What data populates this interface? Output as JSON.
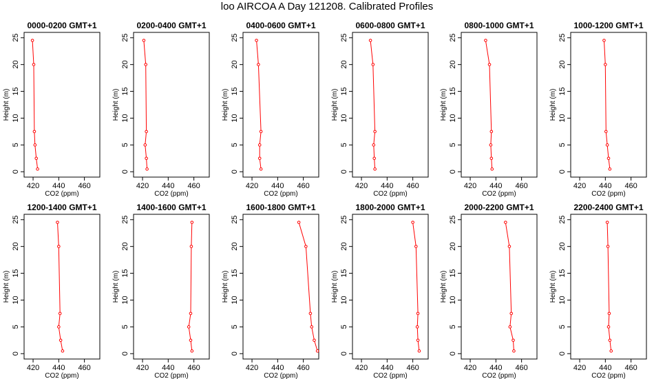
{
  "title": "loo AIRCOA A  Day 121208. Calibrated Profiles",
  "chart_data": [
    {
      "type": "line",
      "title": "0000-0200 GMT+1",
      "xlabel": "CO2 (ppm)",
      "ylabel": "Height (m)",
      "xlim": [
        413,
        472
      ],
      "ylim": [
        -1,
        26
      ],
      "xticks": [
        420,
        440,
        460
      ],
      "yticks": [
        0,
        5,
        10,
        15,
        20,
        25
      ],
      "grid": false,
      "color": "#ff0000",
      "series": [
        {
          "x": [
            423.5,
            422.5,
            421.5,
            421.0,
            420.5,
            419.5
          ],
          "y": [
            0.5,
            2.5,
            5.0,
            7.5,
            20.0,
            24.5
          ]
        }
      ]
    },
    {
      "type": "line",
      "title": "0200-0400 GMT+1",
      "xlabel": "CO2 (ppm)",
      "ylabel": "Height (m)",
      "xlim": [
        413,
        472
      ],
      "ylim": [
        -1,
        26
      ],
      "xticks": [
        420,
        440,
        460
      ],
      "yticks": [
        0,
        5,
        10,
        15,
        20,
        25
      ],
      "grid": false,
      "color": "#ff0000",
      "series": [
        {
          "x": [
            423.5,
            423.0,
            422.0,
            423.0,
            422.5,
            421.0
          ],
          "y": [
            0.5,
            2.5,
            5.0,
            7.5,
            20.0,
            24.5
          ]
        }
      ]
    },
    {
      "type": "line",
      "title": "0400-0600 GMT+1",
      "xlabel": "CO2 (ppm)",
      "ylabel": "Height (m)",
      "xlim": [
        413,
        472
      ],
      "ylim": [
        -1,
        26
      ],
      "xticks": [
        420,
        440,
        460
      ],
      "yticks": [
        0,
        5,
        10,
        15,
        20,
        25
      ],
      "grid": false,
      "color": "#ff0000",
      "series": [
        {
          "x": [
            427.0,
            426.0,
            426.0,
            427.0,
            425.0,
            423.5
          ],
          "y": [
            0.5,
            2.5,
            5.0,
            7.5,
            20.0,
            24.5
          ]
        }
      ]
    },
    {
      "type": "line",
      "title": "0600-0800 GMT+1",
      "xlabel": "CO2 (ppm)",
      "ylabel": "Height (m)",
      "xlim": [
        413,
        472
      ],
      "ylim": [
        -1,
        26
      ],
      "xticks": [
        420,
        440,
        460
      ],
      "yticks": [
        0,
        5,
        10,
        15,
        20,
        25
      ],
      "grid": false,
      "color": "#ff0000",
      "series": [
        {
          "x": [
            430.5,
            430.0,
            429.5,
            430.5,
            429.0,
            427.0
          ],
          "y": [
            0.5,
            2.5,
            5.0,
            7.5,
            20.0,
            24.5
          ]
        }
      ]
    },
    {
      "type": "line",
      "title": "0800-1000 GMT+1",
      "xlabel": "CO2 (ppm)",
      "ylabel": "Height (m)",
      "xlim": [
        413,
        472
      ],
      "ylim": [
        -1,
        26
      ],
      "xticks": [
        420,
        440,
        460
      ],
      "yticks": [
        0,
        5,
        10,
        15,
        20,
        25
      ],
      "grid": false,
      "color": "#ff0000",
      "series": [
        {
          "x": [
            437.0,
            436.5,
            436.0,
            436.5,
            435.0,
            432.0
          ],
          "y": [
            0.5,
            2.5,
            5.0,
            7.5,
            20.0,
            24.5
          ]
        }
      ]
    },
    {
      "type": "line",
      "title": "1000-1200 GMT+1",
      "xlabel": "CO2 (ppm)",
      "ylabel": "Height (m)",
      "xlim": [
        413,
        472
      ],
      "ylim": [
        -1,
        26
      ],
      "xticks": [
        420,
        440,
        460
      ],
      "yticks": [
        0,
        5,
        10,
        15,
        20,
        25
      ],
      "grid": false,
      "color": "#ff0000",
      "series": [
        {
          "x": [
            443.5,
            442.5,
            441.5,
            440.5,
            440.0,
            439.0
          ],
          "y": [
            0.5,
            2.5,
            5.0,
            7.5,
            20.0,
            24.5
          ]
        }
      ]
    },
    {
      "type": "line",
      "title": "1200-1400 GMT+1",
      "xlabel": "CO2 (ppm)",
      "ylabel": "Height (m)",
      "xlim": [
        413,
        472
      ],
      "ylim": [
        -1,
        26
      ],
      "xticks": [
        420,
        440,
        460
      ],
      "yticks": [
        0,
        5,
        10,
        15,
        20,
        25
      ],
      "grid": false,
      "color": "#ff0000",
      "series": [
        {
          "x": [
            443.0,
            441.5,
            440.0,
            441.0,
            440.0,
            439.0
          ],
          "y": [
            0.5,
            2.5,
            5.0,
            7.5,
            20.0,
            24.5
          ]
        }
      ]
    },
    {
      "type": "line",
      "title": "1400-1600 GMT+1",
      "xlabel": "CO2 (ppm)",
      "ylabel": "Height (m)",
      "xlim": [
        413,
        472
      ],
      "ylim": [
        -1,
        26
      ],
      "xticks": [
        420,
        440,
        460
      ],
      "yticks": [
        0,
        5,
        10,
        15,
        20,
        25
      ],
      "grid": false,
      "color": "#ff0000",
      "series": [
        {
          "x": [
            458.5,
            457.5,
            456.0,
            457.5,
            458.0,
            458.5
          ],
          "y": [
            0.5,
            2.5,
            5.0,
            7.5,
            20.0,
            24.5
          ]
        }
      ]
    },
    {
      "type": "line",
      "title": "1600-1800 GMT+1",
      "xlabel": "CO2 (ppm)",
      "ylabel": "Height (m)",
      "xlim": [
        413,
        472
      ],
      "ylim": [
        -1,
        26
      ],
      "xticks": [
        420,
        440,
        460
      ],
      "yticks": [
        0,
        5,
        10,
        15,
        20,
        25
      ],
      "grid": false,
      "color": "#ff0000",
      "series": [
        {
          "x": [
            471.0,
            468.5,
            466.5,
            465.5,
            462.0,
            456.5
          ],
          "y": [
            0.5,
            2.5,
            5.0,
            7.5,
            20.0,
            24.5
          ]
        }
      ]
    },
    {
      "type": "line",
      "title": "1800-2000 GMT+1",
      "xlabel": "CO2 (ppm)",
      "ylabel": "Height (m)",
      "xlim": [
        413,
        472
      ],
      "ylim": [
        -1,
        26
      ],
      "xticks": [
        420,
        440,
        460
      ],
      "yticks": [
        0,
        5,
        10,
        15,
        20,
        25
      ],
      "grid": false,
      "color": "#ff0000",
      "series": [
        {
          "x": [
            465.0,
            464.0,
            463.5,
            464.0,
            462.5,
            460.0
          ],
          "y": [
            0.5,
            2.5,
            5.0,
            7.5,
            20.0,
            24.5
          ]
        }
      ]
    },
    {
      "type": "line",
      "title": "2000-2200 GMT+1",
      "xlabel": "CO2 (ppm)",
      "ylabel": "Height (m)",
      "xlim": [
        413,
        472
      ],
      "ylim": [
        -1,
        26
      ],
      "xticks": [
        420,
        440,
        460
      ],
      "yticks": [
        0,
        5,
        10,
        15,
        20,
        25
      ],
      "grid": false,
      "color": "#ff0000",
      "series": [
        {
          "x": [
            454.0,
            453.5,
            451.0,
            452.0,
            450.5,
            447.5
          ],
          "y": [
            0.5,
            2.5,
            5.0,
            7.5,
            20.0,
            24.5
          ]
        }
      ]
    },
    {
      "type": "line",
      "title": "2200-2400 GMT+1",
      "xlabel": "CO2 (ppm)",
      "ylabel": "Height (m)",
      "xlim": [
        413,
        472
      ],
      "ylim": [
        -1,
        26
      ],
      "xticks": [
        420,
        440,
        460
      ],
      "yticks": [
        0,
        5,
        10,
        15,
        20,
        25
      ],
      "grid": false,
      "color": "#ff0000",
      "series": [
        {
          "x": [
            444.5,
            443.5,
            442.5,
            443.0,
            442.0,
            441.5
          ],
          "y": [
            0.5,
            2.5,
            5.0,
            7.5,
            20.0,
            24.5
          ]
        }
      ]
    }
  ]
}
